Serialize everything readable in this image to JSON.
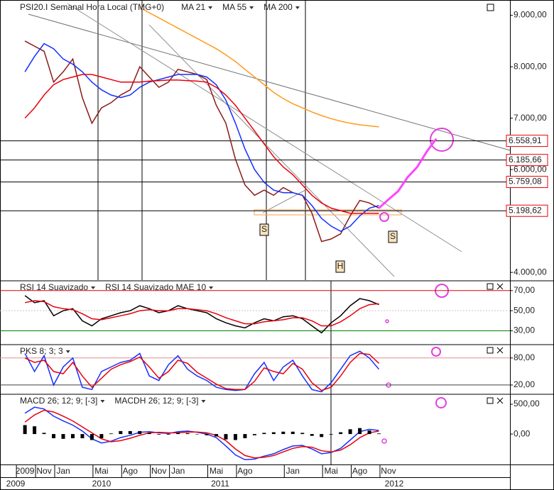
{
  "chart_data": [
    {
      "type": "line",
      "title": "PSI20.I Semanal Hora Local (TMG+0)",
      "series": [
        {
          "color": "#8b1a1a",
          "values": [
            8500,
            8400,
            8300,
            7700,
            7900,
            8150,
            7400,
            6900,
            7200,
            7300,
            7450,
            7550,
            8000,
            7800,
            7600,
            7700,
            7950,
            7900,
            7850,
            7750,
            7250,
            6900,
            6200,
            5700,
            5500,
            5600,
            5500,
            5650,
            5550,
            5500,
            5150,
            4600,
            4650,
            4750,
            5100,
            5400,
            5350,
            5250,
            null,
            null,
            null,
            null,
            null,
            null
          ]
        },
        {
          "name": "MA 21",
          "color": "#1430ff",
          "values": [
            7900,
            8200,
            8450,
            8350,
            8150,
            8050,
            7900,
            7700,
            7550,
            7450,
            7400,
            7450,
            7600,
            7700,
            7750,
            7800,
            7850,
            7850,
            7850,
            7800,
            7650,
            7350,
            6900,
            6400,
            6000,
            5750,
            5600,
            5550,
            5550,
            5500,
            5300,
            5050,
            4900,
            4800,
            4900,
            5100,
            5250,
            5300,
            null,
            null,
            null,
            null,
            null,
            null
          ]
        },
        {
          "name": "MA 55",
          "color": "#e8000b",
          "values": [
            7000,
            7200,
            7450,
            7650,
            7750,
            7800,
            7850,
            7850,
            7800,
            7750,
            7700,
            7700,
            7700,
            7720,
            7730,
            7740,
            7740,
            7730,
            7720,
            7700,
            7600,
            7450,
            7250,
            7000,
            6750,
            6500,
            6250,
            6050,
            5900,
            5700,
            5500,
            5350,
            5250,
            5200,
            5150,
            5150,
            5150,
            5150,
            null,
            null,
            null,
            null,
            null,
            null
          ]
        },
        {
          "name": "MA 200",
          "color": "#ff9a1a",
          "values": [
            null,
            null,
            null,
            null,
            null,
            null,
            null,
            null,
            null,
            null,
            null,
            null,
            9150,
            9050,
            8950,
            8850,
            8750,
            8650,
            8550,
            8450,
            8350,
            8230,
            8100,
            7950,
            7800,
            7650,
            7500,
            7380,
            7280,
            7200,
            7120,
            7050,
            6990,
            6940,
            6900,
            6870,
            6850,
            6830,
            null,
            null,
            null,
            null,
            null,
            null
          ]
        },
        {
          "color": "#ff44ff",
          "values": [
            null,
            null,
            null,
            null,
            null,
            null,
            null,
            null,
            null,
            null,
            null,
            null,
            null,
            null,
            null,
            null,
            null,
            null,
            null,
            null,
            null,
            null,
            null,
            null,
            null,
            null,
            null,
            null,
            null,
            null,
            null,
            null,
            null,
            null,
            null,
            null,
            null,
            5250,
            5420,
            5580,
            5850,
            6050,
            6350,
            6600
          ]
        }
      ],
      "ylim": [
        3850,
        9270
      ],
      "yticks": [
        {
          "value": 9000,
          "label": "9.000,00"
        },
        {
          "value": 8000,
          "label": "8.000,00"
        },
        {
          "value": 7000,
          "label": "7.000,00"
        },
        {
          "value": 6000,
          "label": "6.000,00"
        },
        {
          "value": 4000,
          "label": "4.000,00"
        }
      ],
      "levels": [
        {
          "value": 6558.91,
          "label": "6.558,91"
        },
        {
          "value": 6185.66,
          "label": "6.185,66"
        },
        {
          "value": 5759.08,
          "label": "5.759,08"
        },
        {
          "value": 5198.62,
          "label": "5.198,62"
        }
      ],
      "annotations": [
        "S",
        "S",
        "H"
      ]
    },
    {
      "type": "line",
      "series": [
        {
          "name": "RSI 14 Suavizado",
          "color": "#000000",
          "values": [
            65,
            58,
            60,
            45,
            50,
            52,
            40,
            35,
            42,
            45,
            48,
            50,
            55,
            52,
            48,
            50,
            55,
            52,
            50,
            48,
            42,
            38,
            35,
            33,
            38,
            42,
            40,
            44,
            45,
            42,
            35,
            28,
            38,
            45,
            55,
            62,
            60,
            56,
            null,
            null,
            null,
            null,
            null,
            null
          ]
        },
        {
          "name": "RSI 14 Suavizado MAE 10",
          "color": "#e8000b",
          "values": [
            58,
            60,
            59,
            54,
            52,
            51,
            47,
            42,
            41,
            43,
            45,
            47,
            50,
            51,
            50,
            50,
            52,
            52,
            51,
            50,
            47,
            43,
            40,
            37,
            37,
            39,
            40,
            41,
            43,
            43,
            40,
            35,
            35,
            39,
            45,
            52,
            56,
            57,
            null,
            null,
            null,
            null,
            null,
            null
          ]
        }
      ],
      "ylim": [
        17,
        79
      ],
      "yticks": [
        {
          "value": 70,
          "label": "70,00"
        },
        {
          "value": 50,
          "label": "50,00"
        },
        {
          "value": 30,
          "label": "30,00"
        }
      ],
      "tick_line_colors": [
        "#e00000",
        "#c8c8c8",
        "#008000"
      ]
    },
    {
      "type": "line",
      "series": [
        {
          "name": "PKS 8; 3; 3",
          "color": "#1430ff",
          "values": [
            90,
            50,
            85,
            20,
            60,
            80,
            15,
            10,
            50,
            60,
            70,
            75,
            90,
            40,
            30,
            65,
            85,
            55,
            40,
            30,
            15,
            10,
            8,
            10,
            45,
            70,
            30,
            60,
            75,
            40,
            10,
            5,
            25,
            55,
            85,
            95,
            80,
            55,
            null,
            null,
            null,
            null,
            null,
            null
          ]
        },
        {
          "color": "#e8000b",
          "values": [
            80,
            70,
            75,
            50,
            45,
            70,
            40,
            15,
            35,
            55,
            65,
            72,
            82,
            60,
            35,
            50,
            75,
            68,
            48,
            35,
            22,
            12,
            10,
            10,
            28,
            58,
            50,
            45,
            68,
            55,
            25,
            8,
            15,
            40,
            70,
            90,
            88,
            68,
            null,
            null,
            null,
            null,
            null,
            null
          ]
        }
      ],
      "ylim": [
        1,
        108
      ],
      "yticks": [
        {
          "value": 80,
          "label": "80,00"
        },
        {
          "value": 20,
          "label": "20,00"
        }
      ],
      "tick_line_colors": [
        "#e09090",
        "#404040"
      ]
    },
    {
      "type": "line",
      "series": [
        {
          "name": "MACD 26; 12; 9; [-3]",
          "color": "#1430ff",
          "values": [
            350,
            450,
            420,
            300,
            220,
            150,
            50,
            -80,
            -150,
            -120,
            -60,
            -20,
            30,
            40,
            20,
            10,
            40,
            50,
            30,
            0,
            -60,
            -200,
            -350,
            -430,
            -420,
            -370,
            -330,
            -260,
            -200,
            -190,
            -250,
            -330,
            -310,
            -240,
            -100,
            40,
            80,
            60,
            null,
            null,
            null,
            null,
            null,
            null
          ]
        },
        {
          "color": "#e8000b",
          "values": [
            200,
            320,
            400,
            370,
            300,
            220,
            120,
            20,
            -80,
            -130,
            -110,
            -70,
            -20,
            20,
            30,
            20,
            20,
            35,
            35,
            20,
            -20,
            -110,
            -250,
            -360,
            -400,
            -390,
            -360,
            -300,
            -240,
            -210,
            -220,
            -280,
            -300,
            -270,
            -180,
            -60,
            20,
            50,
            null,
            null,
            null,
            null,
            null,
            null
          ]
        },
        {
          "name": "MACDH 26; 12; 9; [-3]",
          "color": "#000000",
          "style": "bar",
          "values": [
            150,
            130,
            20,
            -70,
            -80,
            -70,
            -70,
            -100,
            -70,
            10,
            50,
            50,
            50,
            20,
            -10,
            -10,
            20,
            15,
            -5,
            -20,
            -40,
            -90,
            -100,
            -70,
            -20,
            20,
            30,
            40,
            40,
            20,
            -30,
            -50,
            -10,
            30,
            80,
            100,
            60,
            10,
            null,
            null,
            null,
            null,
            null,
            null
          ]
        }
      ],
      "ylim": [
        -510,
        655
      ],
      "yticks": [
        {
          "value": 500,
          "label": "500,00"
        },
        {
          "value": 0,
          "label": "0,00"
        }
      ],
      "categories": [
        "2009",
        null,
        "Nov",
        null,
        "Jan",
        null,
        null,
        null,
        "Mai",
        null,
        null,
        "Ago",
        null,
        null,
        "Nov",
        null,
        "Jan",
        null,
        null,
        null,
        "Mai",
        null,
        null,
        "Ago",
        null,
        null,
        null,
        null,
        "Jan",
        null,
        null,
        null,
        "Mai",
        null,
        null,
        "Ago",
        null,
        null,
        "Nov",
        null,
        null,
        null,
        null,
        null
      ],
      "x_groups": [
        "2009",
        "2010",
        "2011",
        "2012"
      ]
    }
  ]
}
